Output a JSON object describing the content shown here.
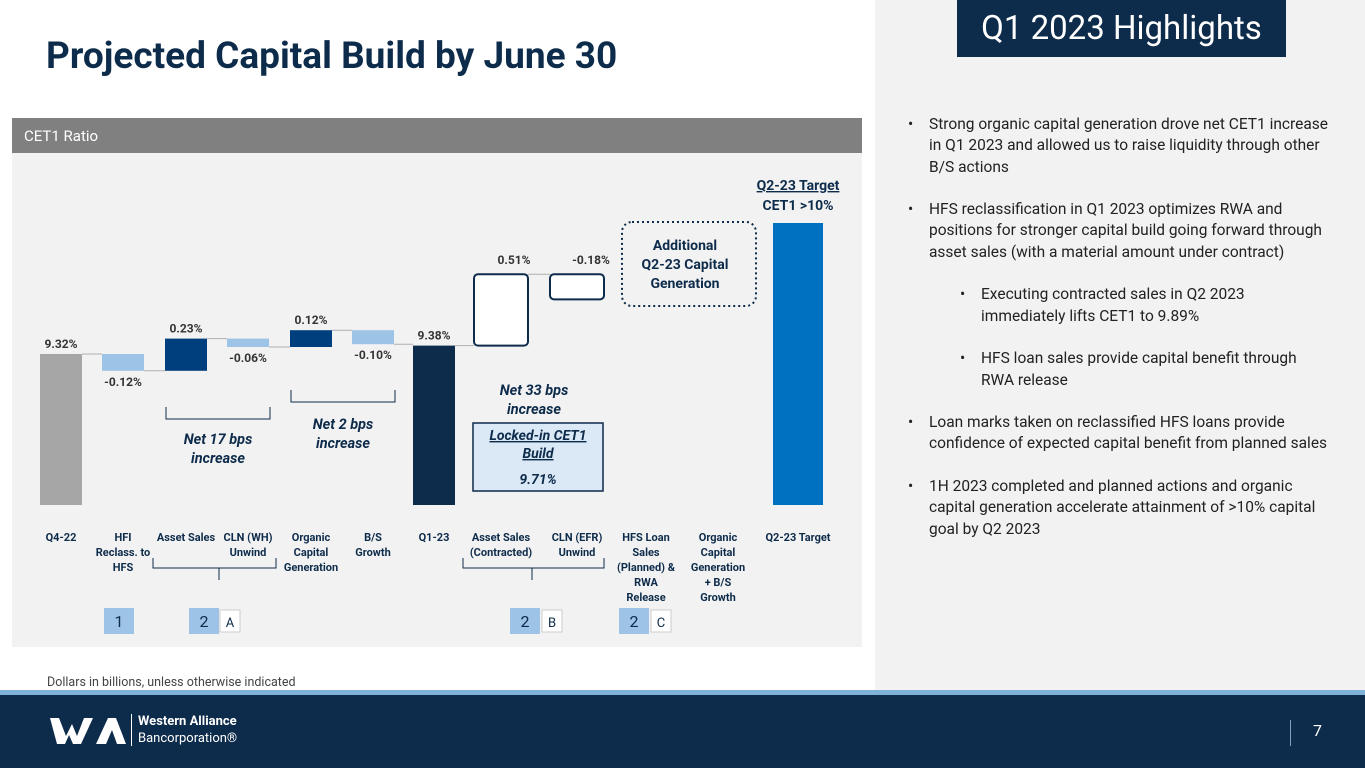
{
  "slide": {
    "title": "Projected Capital Build by June 30",
    "highlights_title": "Q1 2023 Highlights",
    "footnote": "Dollars in billions, unless otherwise indicated",
    "page_number": "7"
  },
  "logo": {
    "line1": "Western Alliance",
    "line2": "Bancorporation®"
  },
  "colors": {
    "navy": "#0d2b4a",
    "gray_bar": "#a6a6a6",
    "dark_blue": "#003f7d",
    "light_blue": "#9dc3e6",
    "target_blue": "#0070c0",
    "panel_bg": "#f2f2f2",
    "header_gray": "#808080",
    "number_box": "#9dc3e6"
  },
  "bullets": [
    {
      "level": 1,
      "text": "Strong organic capital generation drove net CET1 increase in Q1 2023 and allowed us to raise liquidity through other B/S actions"
    },
    {
      "level": 1,
      "text": "HFS reclassification in Q1 2023 optimizes RWA and positions for stronger capital build going forward through asset sales (with a material amount under contract)"
    },
    {
      "level": 2,
      "text": "Executing contracted sales in Q2 2023 immediately lifts CET1 to 9.89%"
    },
    {
      "level": 2,
      "text": "HFS loan sales provide capital benefit through RWA release"
    },
    {
      "level": 1,
      "text": "Loan marks taken on reclassified HFS loans provide confidence of expected capital benefit from planned sales"
    },
    {
      "level": 1,
      "text": "1H 2023 completed and planned actions and organic capital generation accelerate attainment of >10% capital goal by Q2 2023"
    }
  ],
  "chart_data": {
    "type": "waterfall",
    "title": "CET1 Ratio",
    "unit": "%",
    "categories": [
      "Q4-22",
      "HFI Reclass. to HFS",
      "Asset Sales",
      "CLN (WH) Unwind",
      "Organic Capital Generation",
      "B/S Growth",
      "Q1-23",
      "Asset Sales (Contracted)",
      "CLN (EFR) Unwind",
      "HFS Loan Sales (Planned) & RWA Release",
      "Organic Capital Generation + B/S Growth",
      "Q2-23 Target"
    ],
    "category_lines": [
      [
        "Q4-22"
      ],
      [
        "HFI",
        "Reclass. to",
        "HFS"
      ],
      [
        "Asset Sales"
      ],
      [
        "CLN (WH)",
        "Unwind"
      ],
      [
        "Organic",
        "Capital",
        "Generation"
      ],
      [
        "B/S",
        "Growth"
      ],
      [
        "Q1-23"
      ],
      [
        "Asset Sales",
        "(Contracted)"
      ],
      [
        "CLN (EFR)",
        "Unwind"
      ],
      [
        "HFS Loan",
        "Sales",
        "(Planned) &",
        "RWA",
        "Release"
      ],
      [
        "Organic",
        "Capital",
        "Generation",
        "+ B/S",
        "Growth"
      ],
      [
        "Q2-23 Target"
      ]
    ],
    "values": [
      9.32,
      -0.12,
      0.23,
      -0.06,
      0.12,
      -0.1,
      9.38,
      0.51,
      -0.18,
      null,
      null,
      10.0
    ],
    "value_labels": [
      "9.32%",
      "-0.12%",
      "0.23%",
      "-0.06%",
      "0.12%",
      "-0.10%",
      "9.38%",
      "0.51%",
      "-0.18%",
      "",
      "",
      ""
    ],
    "bar_kinds": [
      "total",
      "decrease",
      "increase",
      "decrease",
      "increase",
      "decrease",
      "total",
      "projected",
      "projected",
      "additional",
      "additional",
      "target"
    ],
    "annotations": {
      "net_17": {
        "prefix": "Net ",
        "value": "17 bps",
        "suffix": "increase"
      },
      "net_2": {
        "prefix": "Net ",
        "value": "2 bps",
        "suffix": "increase"
      },
      "net_33": {
        "prefix": "Net ",
        "value": "33 bps",
        "suffix": "increase"
      },
      "locked_in": {
        "line1": "Locked-in CET1",
        "line2": "Build",
        "value": "9.71%"
      },
      "additional": {
        "line1": "Additional",
        "line2": "Q2-23 Capital",
        "line3": "Generation"
      },
      "target": {
        "line1": "Q2-23 Target",
        "line2": "CET1 >10%"
      }
    },
    "markers": [
      {
        "number": "1",
        "letter": ""
      },
      {
        "number": "2",
        "letter": "A"
      },
      {
        "number": "2",
        "letter": "B"
      },
      {
        "number": "2",
        "letter": "C"
      }
    ]
  }
}
